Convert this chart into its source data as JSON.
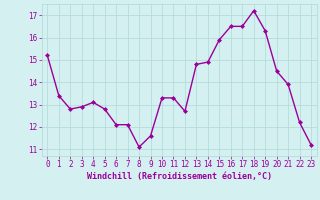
{
  "x": [
    0,
    1,
    2,
    3,
    4,
    5,
    6,
    7,
    8,
    9,
    10,
    11,
    12,
    13,
    14,
    15,
    16,
    17,
    18,
    19,
    20,
    21,
    22,
    23
  ],
  "y": [
    15.2,
    13.4,
    12.8,
    12.9,
    13.1,
    12.8,
    12.1,
    12.1,
    11.1,
    11.6,
    13.3,
    13.3,
    12.7,
    14.8,
    14.9,
    15.9,
    16.5,
    16.5,
    17.2,
    16.3,
    14.5,
    13.9,
    12.2,
    11.2
  ],
  "line_color": "#9b009b",
  "marker": "D",
  "marker_size": 2.0,
  "marker_linewidth": 0.5,
  "linewidth": 1.0,
  "background_color": "#d4f0f0",
  "grid_color": "#b0d8d8",
  "xlabel": "Windchill (Refroidissement éolien,°C)",
  "xlabel_color": "#9b009b",
  "tick_color": "#9b009b",
  "ylim": [
    10.7,
    17.5
  ],
  "xlim": [
    -0.5,
    23.5
  ],
  "yticks": [
    11,
    12,
    13,
    14,
    15,
    16,
    17
  ],
  "xticks": [
    0,
    1,
    2,
    3,
    4,
    5,
    6,
    7,
    8,
    9,
    10,
    11,
    12,
    13,
    14,
    15,
    16,
    17,
    18,
    19,
    20,
    21,
    22,
    23
  ],
  "tick_fontsize": 5.5,
  "xlabel_fontsize": 6.0
}
